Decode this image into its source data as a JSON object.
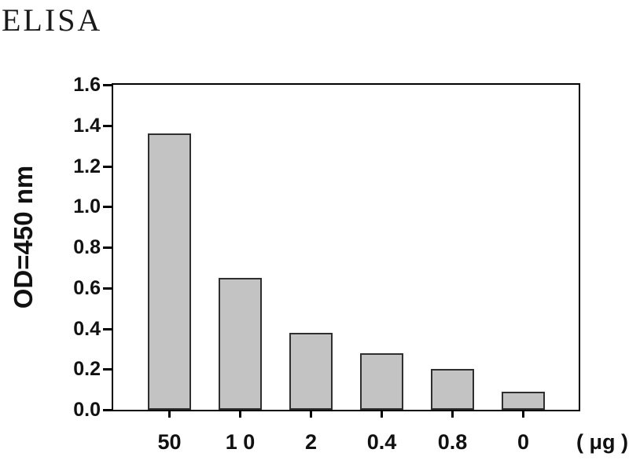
{
  "chart_data": {
    "type": "bar",
    "title": "ELISA",
    "ylabel": "OD=450 nm",
    "xlabel": "",
    "unit_label": "( μg )",
    "categories": [
      "50",
      "1 0",
      "2",
      "0.4",
      "0.8",
      "0"
    ],
    "values": [
      1.36,
      0.65,
      0.38,
      0.28,
      0.2,
      0.09
    ],
    "ylim": [
      0,
      1.6
    ],
    "y_ticks": [
      "0.0",
      "0.2",
      "0.4",
      "0.6",
      "0.8",
      "1.0",
      "1.2",
      "1.4",
      "1.6"
    ],
    "grid": "off",
    "legend": "none",
    "colors": {
      "bar_fill": "#c3c3c3",
      "bar_border": "#2f2f2f",
      "axis": "#000000",
      "text": "#111111",
      "background": "#ffffff"
    }
  }
}
